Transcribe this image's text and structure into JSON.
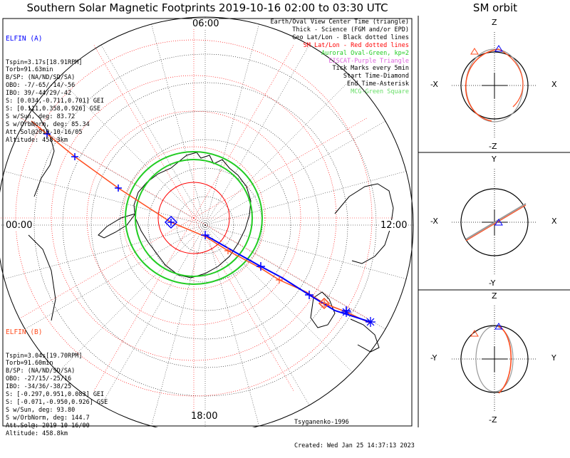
{
  "title": "Southern Solar Magnetic Footprints 2019-10-16 02:00 to 03:30 UTC",
  "orbit_title": "SM orbit",
  "lt_labels": {
    "top": "06:00",
    "left": "00:00",
    "right": "12:00",
    "bottom": "18:00"
  },
  "sat_a": {
    "name": "ELFIN (A)",
    "color": "#0000ff",
    "lines": [
      "Tspin=3.17s[18.91RPM]",
      "Torb=91.63min",
      "B/SP: (NA/ND/SD/SA)",
      "OBO: -7/-65/-14/-56",
      "IBO: 39/-44/29/-42",
      "S: [0.034,-0.711,0.701] GEI",
      "S: [0.111,0.358,0.926] GSE",
      "S w/Sun, deg: 83.72",
      "S w/OrbNorm, deg: 85.34",
      "Att.Sol@2019-10-16/05",
      "Altitude: 458.3km"
    ]
  },
  "sat_b": {
    "name": "ELFIN (B)",
    "color": "#ff4d1f",
    "lines": [
      "Tspin=3.04s[19.70RPM]",
      "Torb=91.60min",
      "B/SP: (NA/ND/SD/SA)",
      "OBO: -27/15/-25/16",
      "IBO: -34/36/-38/25",
      "S: [-0.297,0.951,0.083] GEI",
      "S: [-0.071,-0.950,0.926] GSE",
      "S w/Sun, deg: 93.80",
      "S w/OrbNorm, deg: 144.7",
      "Att.Sol@: 2019-10-16/00",
      "Altitude: 458.8km"
    ]
  },
  "legend": [
    {
      "text": "Earth/Oval View Center Time (triangle)",
      "color": "#000000"
    },
    {
      "text": "Thick - Science (FGM and/or EPD)",
      "color": "#000000"
    },
    {
      "text": "Geo Lat/Lon - Black dotted lines",
      "color": "#000000"
    },
    {
      "text": "SM Lat/Lon - Red dotted lines",
      "color": "#ff0000"
    },
    {
      "text": "Auroral Oval-Green, kp=2",
      "color": "#22cc22"
    },
    {
      "text": "EISCAT-Purple Triangle",
      "color": "#dd66dd"
    },
    {
      "text": "Tick Marks every 5min",
      "color": "#000000"
    },
    {
      "text": "Start Time-Diamond",
      "color": "#000000"
    },
    {
      "text": "End Time-Asterisk",
      "color": "#000000"
    },
    {
      "text": "MCG-Green Square",
      "color": "#66dd66"
    }
  ],
  "credits": {
    "author": "Tsyganenko-1996",
    "created": "Created: Wed Jan 25 14:37:13 2023"
  },
  "orbit_panels": [
    {
      "top": "Z",
      "bottom": "-Z",
      "left": "-X",
      "right": "X"
    },
    {
      "top": "Y",
      "bottom": "-Y",
      "left": "-X",
      "right": "X"
    },
    {
      "top": "Z",
      "bottom": "-Z",
      "left": "-Y",
      "right": "Y"
    }
  ],
  "colors": {
    "track_a": "#0000ff",
    "track_b": "#ff4d1f",
    "oval": "#22cc22",
    "sm_grid": "#ff0000",
    "coast": "#000000"
  },
  "chart_data": {
    "type": "polar-map",
    "projection": "south-polar",
    "local_time_labels": [
      "06:00",
      "00:00",
      "12:00",
      "18:00"
    ],
    "sm_latitude_circles": [
      -80,
      -70,
      -60,
      -50,
      -40,
      -30,
      -20,
      -10
    ],
    "tick_interval_min": 5,
    "series": [
      {
        "name": "ELFIN (A)",
        "color": "#0000ff"
      },
      {
        "name": "ELFIN (B)",
        "color": "#ff4d1f"
      }
    ]
  }
}
